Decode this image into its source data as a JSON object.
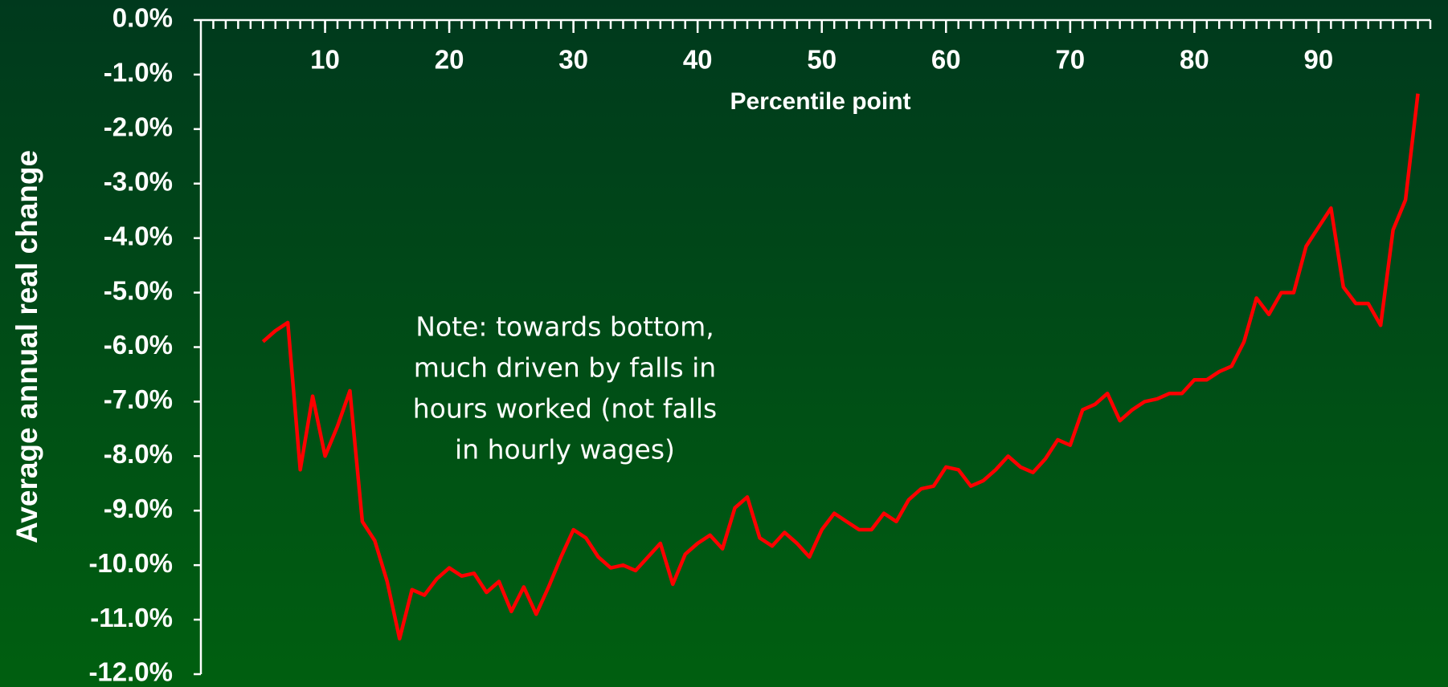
{
  "chart_data": {
    "type": "line",
    "xlabel": "Percentile point",
    "ylabel": "Average annual real change",
    "annotation": [
      "Note: towards bottom,",
      "much driven by falls in",
      "hours worked (not falls",
      "in hourly wages)"
    ],
    "x": [
      5,
      6,
      7,
      8,
      9,
      10,
      11,
      12,
      13,
      14,
      15,
      16,
      17,
      18,
      19,
      20,
      21,
      22,
      23,
      24,
      25,
      26,
      27,
      28,
      29,
      30,
      31,
      32,
      33,
      34,
      35,
      36,
      37,
      38,
      39,
      40,
      41,
      42,
      43,
      44,
      45,
      46,
      47,
      48,
      49,
      50,
      51,
      52,
      53,
      54,
      55,
      56,
      57,
      58,
      59,
      60,
      61,
      62,
      63,
      64,
      65,
      66,
      67,
      68,
      69,
      70,
      71,
      72,
      73,
      74,
      75,
      76,
      77,
      78,
      79,
      80,
      81,
      82,
      83,
      84,
      85,
      86,
      87,
      88,
      89,
      90,
      91,
      92,
      93,
      94,
      95,
      96,
      97,
      98
    ],
    "series": [
      {
        "color": "#ff0000",
        "values": [
          -5.9,
          -5.7,
          -5.55,
          -8.25,
          -6.9,
          -8.0,
          -7.45,
          -6.8,
          -9.2,
          -9.55,
          -10.3,
          -11.35,
          -10.45,
          -10.55,
          -10.25,
          -10.05,
          -10.2,
          -10.15,
          -10.5,
          -10.3,
          -10.85,
          -10.4,
          -10.9,
          -10.4,
          -9.85,
          -9.35,
          -9.5,
          -9.85,
          -10.05,
          -10.0,
          -10.1,
          -9.85,
          -9.6,
          -10.35,
          -9.8,
          -9.6,
          -9.45,
          -9.7,
          -8.95,
          -8.75,
          -9.5,
          -9.65,
          -9.4,
          -9.6,
          -9.85,
          -9.35,
          -9.05,
          -9.2,
          -9.35,
          -9.35,
          -9.05,
          -9.2,
          -8.8,
          -8.6,
          -8.55,
          -8.2,
          -8.25,
          -8.55,
          -8.45,
          -8.25,
          -8.0,
          -8.2,
          -8.3,
          -8.05,
          -7.7,
          -7.8,
          -7.15,
          -7.05,
          -6.85,
          -7.35,
          -7.15,
          -7.0,
          -6.95,
          -6.85,
          -6.85,
          -6.6,
          -6.6,
          -6.45,
          -6.35,
          -5.9,
          -5.1,
          -5.4,
          -5.0,
          -5.0,
          -4.15,
          -3.8,
          -3.45,
          -4.9,
          -5.2,
          -5.2,
          -5.6,
          -3.85,
          -3.3,
          -1.35
        ]
      }
    ],
    "xlim": [
      0,
      99
    ],
    "ylim": [
      -12,
      0
    ],
    "xticks": [
      10,
      20,
      30,
      40,
      50,
      60,
      70,
      80,
      90
    ],
    "yticks": [
      {
        "value": 0,
        "label": "0.0%"
      },
      {
        "value": -1,
        "label": "-1.0%"
      },
      {
        "value": -2,
        "label": "-2.0%"
      },
      {
        "value": -3,
        "label": "-3.0%"
      },
      {
        "value": -4,
        "label": "-4.0%"
      },
      {
        "value": -5,
        "label": "-5.0%"
      },
      {
        "value": -6,
        "label": "-6.0%"
      },
      {
        "value": -7,
        "label": "-7.0%"
      },
      {
        "value": -8,
        "label": "-8.0%"
      },
      {
        "value": -9,
        "label": "-9.0%"
      },
      {
        "value": -10,
        "label": "-10.0%"
      },
      {
        "value": -11,
        "label": "-11.0%"
      },
      {
        "value": -12,
        "label": "-12.0%"
      }
    ]
  }
}
